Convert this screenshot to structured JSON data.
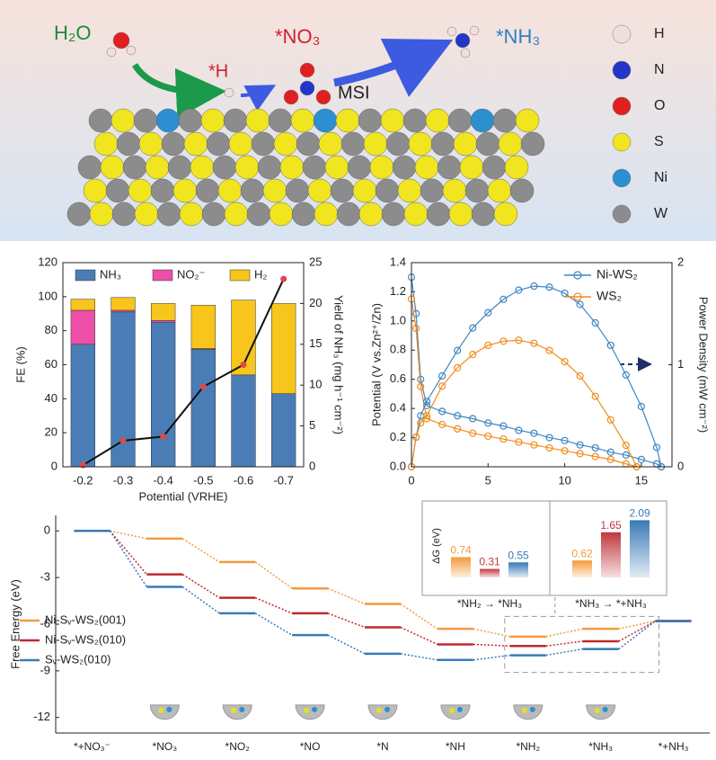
{
  "schematic": {
    "molecules": [
      "H₂O",
      "*H",
      "*NO₃",
      "*NH₃"
    ],
    "label": "MSI",
    "legend": [
      "H",
      "N",
      "O",
      "S",
      "Ni",
      "W"
    ]
  },
  "chart_data": [
    {
      "type": "bar",
      "stacked": true,
      "categories": [
        "-0.2",
        "-0.3",
        "-0.4",
        "-0.5",
        "-0.6",
        "-0.7"
      ],
      "xlabel": "Potential (VRHE)",
      "ylabel": "FE (%)",
      "y2label": "Yield of NH₃ (mg h⁻¹ cm⁻²)",
      "ylim": [
        0,
        120
      ],
      "yticks": [
        0,
        20,
        40,
        60,
        80,
        100,
        120
      ],
      "y2lim": [
        0,
        25
      ],
      "y2ticks": [
        0,
        5,
        10,
        15,
        20,
        25
      ],
      "legend": "top",
      "series": [
        {
          "name": "NH₃",
          "color": "#4a7db5",
          "values": [
            72,
            91,
            85,
            69,
            54,
            43
          ]
        },
        {
          "name": "NO₂⁻",
          "color": "#ee4fa8",
          "values": [
            20,
            1,
            1,
            0.5,
            0,
            0
          ]
        },
        {
          "name": "H₂",
          "color": "#f7c51b",
          "values": [
            6.5,
            7.5,
            10,
            25.5,
            44,
            53
          ]
        },
        {
          "type": "line",
          "axis": "y2",
          "color": "#111111",
          "marker_color": "#e0474c",
          "values": [
            0.2,
            3.2,
            3.7,
            9.8,
            12.5,
            23
          ]
        }
      ]
    },
    {
      "type": "scatter",
      "ylabel": "Potential (V vs.Zn²⁺/Zn)",
      "y2label": "Power Density (mW cm⁻²)",
      "xlim": [
        0,
        17
      ],
      "xticks": [
        0,
        5,
        10,
        15
      ],
      "ylim": [
        0,
        1.4
      ],
      "yticks": [
        {
          "value": 0,
          "label": "0.0"
        },
        0.2,
        0.4,
        0.6,
        0.8,
        {
          "value": 1,
          "label": "1.0"
        },
        1.2,
        1.4
      ],
      "y2lim": [
        0,
        2
      ],
      "y2ticks": [
        0,
        1,
        2
      ],
      "legend": "top-right",
      "series": [
        {
          "name": "Ni-WS₂",
          "color": "#3f86c4",
          "x": [
            0,
            0.3,
            0.6,
            1,
            2,
            3,
            4,
            5,
            6,
            7,
            8,
            9,
            10,
            11,
            12,
            13,
            14,
            15,
            16,
            16.3
          ],
          "values": [
            1.3,
            1.05,
            0.6,
            0.42,
            0.38,
            0.35,
            0.33,
            0.3,
            0.28,
            0.25,
            0.23,
            0.2,
            0.18,
            0.15,
            0.13,
            0.1,
            0.08,
            0.05,
            0.02,
            0
          ]
        },
        {
          "name": "WS₂",
          "color": "#f28c1e",
          "x": [
            0,
            0.3,
            0.6,
            1,
            2,
            3,
            4,
            5,
            6,
            7,
            8,
            9,
            10,
            11,
            12,
            13,
            14,
            14.7
          ],
          "values": [
            1.15,
            0.95,
            0.55,
            0.33,
            0.29,
            0.26,
            0.23,
            0.21,
            0.19,
            0.17,
            0.15,
            0.13,
            0.11,
            0.09,
            0.07,
            0.05,
            0.02,
            0
          ]
        },
        {
          "axis": "y2",
          "color": "#3f86c4",
          "x": [
            0,
            0.3,
            0.6,
            1,
            2,
            3,
            4,
            5,
            6,
            7,
            8,
            9,
            10,
            11,
            12,
            13,
            14,
            15,
            16,
            16.3
          ],
          "values": [
            0,
            0.29,
            0.5,
            0.64,
            0.89,
            1.14,
            1.36,
            1.51,
            1.64,
            1.73,
            1.77,
            1.76,
            1.7,
            1.59,
            1.41,
            1.19,
            0.9,
            0.59,
            0.19,
            0
          ]
        },
        {
          "axis": "y2",
          "color": "#f28c1e",
          "x": [
            0,
            0.3,
            0.6,
            1,
            2,
            3,
            4,
            5,
            6,
            7,
            8,
            9,
            10,
            11,
            12,
            13,
            14,
            14.7
          ],
          "values": [
            0,
            0.29,
            0.43,
            0.5,
            0.79,
            0.97,
            1.1,
            1.19,
            1.23,
            1.24,
            1.21,
            1.14,
            1.03,
            0.89,
            0.69,
            0.46,
            0.21,
            0
          ]
        }
      ]
    },
    {
      "type": "energy",
      "ylabel": "Free Energy (eV)",
      "categories": [
        "*+NO₃⁻",
        "*NO₃",
        "*NO₂",
        "*NO",
        "*N",
        "*NH",
        "*NH₂",
        "*NH₃",
        "*+NH₃"
      ],
      "ylim": [
        -13,
        1
      ],
      "yticks": [
        0,
        -3,
        -6,
        -9,
        -12
      ],
      "legend": "middle-left",
      "series": [
        {
          "name": "Ni-Sᵥ-WS₂(001)",
          "color": "#f39a3c",
          "values": [
            0,
            -0.5,
            -2,
            -3.7,
            -4.7,
            -6.3,
            -6.8,
            -6.3,
            -5.8
          ]
        },
        {
          "name": "Ni-Sᵥ-WS₂(010)",
          "color": "#c0282e",
          "values": [
            0,
            -2.8,
            -4.3,
            -5.3,
            -6.2,
            -7.3,
            -7.4,
            -7.1,
            -5.8
          ]
        },
        {
          "name": "Sᵥ-WS₂(010)",
          "color": "#3a7ab8",
          "values": [
            0,
            -3.6,
            -5.3,
            -6.7,
            -7.9,
            -8.3,
            -8,
            -7.6,
            -5.8
          ]
        }
      ]
    },
    {
      "type": "bar",
      "ylabel": "ΔG (eV)",
      "categories": [
        "*NH₂ → *NH₃",
        "*NH₃ → *+NH₃"
      ],
      "ylim": [
        0,
        2.3
      ],
      "series": [
        {
          "color": "#f39a3c",
          "values": [
            0.74,
            0.62
          ]
        },
        {
          "color": "#c0383f",
          "values": [
            0.31,
            1.65
          ]
        },
        {
          "color": "#3a7ab8",
          "values": [
            0.55,
            2.09
          ]
        }
      ]
    }
  ]
}
